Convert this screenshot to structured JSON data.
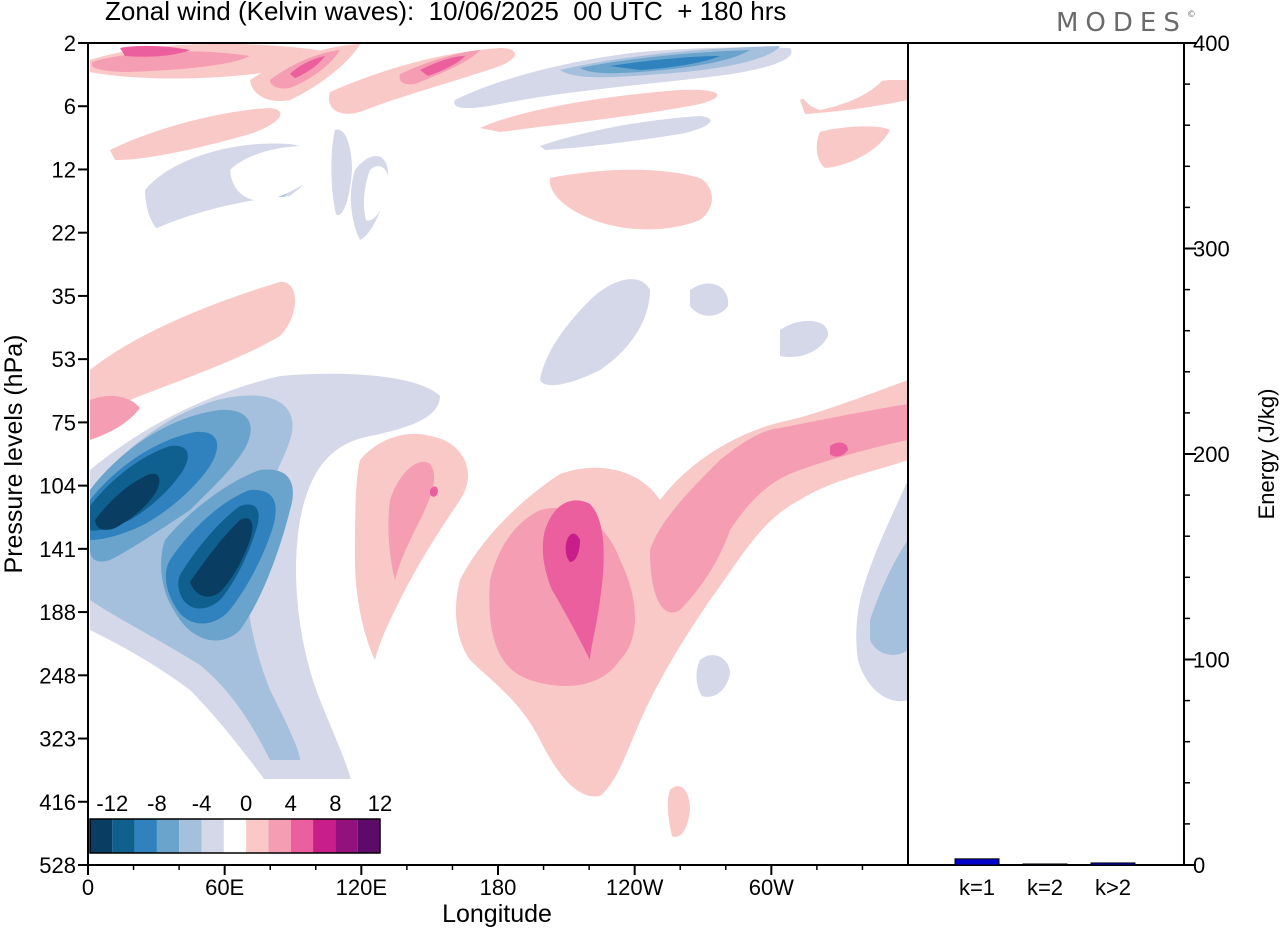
{
  "title": "Zonal wind (Kelvin waves):  10/06/2025  00 UTC  + 180 hrs",
  "logo": "MODES",
  "logo_mark": "©",
  "chart_data": [
    {
      "type": "heatmap",
      "title": "Zonal wind (Kelvin waves):  10/06/2025  00 UTC  + 180 hrs",
      "xlabel": "Longitude",
      "ylabel": "Pressure levels (hPa)",
      "x_ticks": [
        "0",
        "60E",
        "120E",
        "180",
        "120W",
        "60W"
      ],
      "x_tick_degrees": [
        0,
        60,
        120,
        180,
        240,
        300
      ],
      "xlim": [
        0,
        360
      ],
      "y_ticks": [
        "2",
        "6",
        "12",
        "22",
        "35",
        "53",
        "75",
        "104",
        "141",
        "188",
        "248",
        "323",
        "416",
        "528"
      ],
      "y_axis_inverted": true,
      "colorbar": {
        "labels": [
          "-12",
          "-8",
          "-4",
          "0",
          "4",
          "8",
          "12"
        ],
        "levels": [
          -14,
          -12,
          -10,
          -8,
          -6,
          -4,
          -2,
          2,
          4,
          6,
          8,
          10,
          12,
          14
        ],
        "colors": [
          "#0a3d62",
          "#0f5f8f",
          "#2f82bd",
          "#6aa3cc",
          "#a4c0dc",
          "#d4d8e8",
          "#ffffff",
          "#f9c9c8",
          "#f59eb3",
          "#ec5f9e",
          "#c81e8a",
          "#93117c",
          "#5e0a6b"
        ],
        "placement": "bottom-left"
      },
      "features": [
        {
          "sign": "negative",
          "lon": 35,
          "level": 141,
          "peak": -13
        },
        {
          "sign": "negative",
          "lon": 10,
          "level": 104,
          "peak": -12
        },
        {
          "sign": "negative",
          "lon": 250,
          "level": 2,
          "peak": -12
        },
        {
          "sign": "negative",
          "lon": 355,
          "level": 188,
          "peak": -6
        },
        {
          "sign": "positive",
          "lon": 213,
          "level": 141,
          "peak": 11
        },
        {
          "sign": "positive",
          "lon": 152,
          "level": 115,
          "peak": 9
        },
        {
          "sign": "positive",
          "lon": 330,
          "level": 90,
          "peak": 9
        },
        {
          "sign": "positive",
          "lon": 160,
          "level": 3,
          "peak": 10
        },
        {
          "sign": "positive",
          "lon": 30,
          "level": 3,
          "peak": 8
        }
      ]
    },
    {
      "type": "bar",
      "ylabel": "Energy (J/kg)",
      "categories": [
        "k=1",
        "k=2",
        "k>2"
      ],
      "values": [
        3,
        0.5,
        1
      ],
      "ylim": [
        0,
        400
      ],
      "y_ticks": [
        "0",
        "100",
        "200",
        "300",
        "400"
      ],
      "colors": [
        "#0000cc",
        "#0000cc",
        "#0000cc"
      ]
    }
  ]
}
